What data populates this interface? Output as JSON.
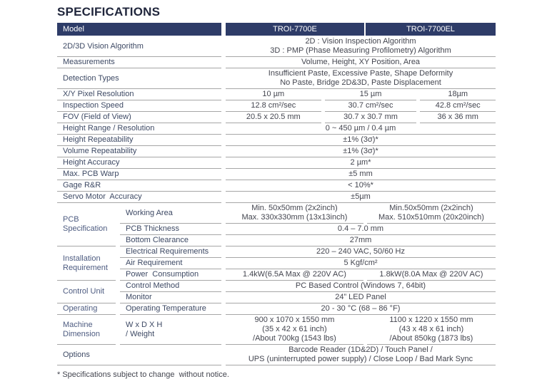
{
  "page": {
    "title": "SPECIFICATIONS",
    "footnote": "* Specifications subject to change  without notice."
  },
  "colors": {
    "header_bg": "#2e3c68",
    "header_text": "#ffffff",
    "row_line": "#a6a6a6",
    "label_text": "#3d4964",
    "group_text": "#4d5b80",
    "value_text": "#43454f",
    "title_text": "#20263c"
  },
  "header": {
    "model_label": "Model",
    "columns": [
      "TROI-7700E",
      "TROI-7700EL"
    ]
  },
  "sections": [
    {
      "type": "row",
      "label": "2D/3D Vision Algorithm",
      "cells": [
        {
          "lines": [
            "2D : Vision Inspection Algorithm",
            "3D : PMP (Phase Measuring Profilometry) Algorithm"
          ]
        }
      ]
    },
    {
      "type": "row",
      "label": "Measurements",
      "cells": [
        {
          "lines": [
            "Volume, Height, XY Position, Area"
          ]
        }
      ]
    },
    {
      "type": "row",
      "label": "Detection Types",
      "cells": [
        {
          "lines": [
            "Insufficient Paste, Excessive Paste, Shape Deformity",
            "No Paste, Bridge 2D&3D, Paste Displacement"
          ]
        }
      ]
    },
    {
      "type": "row",
      "label": "X/Y Pixel Resolution",
      "cells": [
        {
          "lines": [
            "10 µm"
          ]
        },
        {
          "lines": [
            "15 µm"
          ]
        },
        {
          "lines": [
            "18µm"
          ]
        }
      ]
    },
    {
      "type": "row",
      "label": "Inspection Speed",
      "cells": [
        {
          "lines": [
            "12.8 cm²/sec"
          ]
        },
        {
          "lines": [
            "30.7 cm²/sec"
          ]
        },
        {
          "lines": [
            "42.8 cm²/sec"
          ]
        }
      ]
    },
    {
      "type": "row",
      "label": "FOV (Field of View)",
      "cells": [
        {
          "lines": [
            "20.5 x 20.5 mm"
          ]
        },
        {
          "lines": [
            "30.7 x 30.7 mm"
          ]
        },
        {
          "lines": [
            "36 x 36 mm"
          ]
        }
      ]
    },
    {
      "type": "row",
      "label": "Height Range / Resolution",
      "cells": [
        {
          "lines": [
            "0 ~ 450 µm / 0.4 µm"
          ]
        }
      ]
    },
    {
      "type": "row",
      "label": "Height Repeatability",
      "cells": [
        {
          "lines": [
            "±1% (3σ)*"
          ]
        }
      ]
    },
    {
      "type": "row",
      "label": "Volume Repeatability",
      "cells": [
        {
          "lines": [
            "±1% (3σ)*"
          ]
        }
      ]
    },
    {
      "type": "row",
      "label": "Height Accuracy",
      "cells": [
        {
          "lines": [
            "2 µm*"
          ]
        }
      ]
    },
    {
      "type": "row",
      "label": "Max. PCB Warp",
      "cells": [
        {
          "lines": [
            "±5 mm"
          ]
        }
      ]
    },
    {
      "type": "row",
      "label": "Gage R&R",
      "cells": [
        {
          "lines": [
            "< 10%*"
          ]
        }
      ]
    },
    {
      "type": "row",
      "label": "Servo Motor  Accuracy",
      "cells": [
        {
          "lines": [
            "±5µm"
          ]
        }
      ]
    },
    {
      "type": "group",
      "label": "PCB Specification",
      "rows": [
        {
          "label": "Working Area",
          "cells": [
            {
              "lines": [
                "Min. 50x50mm (2x2inch)",
                "Max. 330x330mm (13x13inch)"
              ]
            },
            {
              "lines": [
                "Min.50x50mm (2x2inch)",
                "Max. 510x510mm (20x20inch)"
              ]
            }
          ]
        },
        {
          "label": "PCB Thickness",
          "cells": [
            {
              "lines": [
                "0.4 – 7.0 mm"
              ]
            }
          ]
        },
        {
          "label": "Bottom Clearance",
          "cells": [
            {
              "lines": [
                "27mm"
              ]
            }
          ]
        }
      ]
    },
    {
      "type": "group",
      "label": "Installation Requirement",
      "rows": [
        {
          "label": "Electrical Requirements",
          "cells": [
            {
              "lines": [
                "220 – 240 VAC, 50/60 Hz"
              ]
            }
          ]
        },
        {
          "label": "Air Requirement",
          "cells": [
            {
              "lines": [
                "5 Kgf/cm²"
              ]
            }
          ]
        },
        {
          "label": "Power  Consumption",
          "cells": [
            {
              "lines": [
                "1.4kW(6.5A Max @ 220V AC)"
              ]
            },
            {
              "lines": [
                "1.8kW(8.0A Max @ 220V AC)"
              ]
            }
          ]
        }
      ]
    },
    {
      "type": "group",
      "label": "Control Unit",
      "rows": [
        {
          "label": "Control Method",
          "cells": [
            {
              "lines": [
                "PC Based Control (Windows 7, 64bit)"
              ]
            }
          ]
        },
        {
          "label": "Monitor",
          "cells": [
            {
              "lines": [
                "24” LED Panel"
              ]
            }
          ]
        }
      ]
    },
    {
      "type": "group",
      "label": "Operating",
      "rows": [
        {
          "label": "Operating Temperature",
          "cells": [
            {
              "lines": [
                "20 - 30 °C (68 – 86 °F)"
              ]
            }
          ]
        }
      ]
    },
    {
      "type": "group",
      "label": "Machine Dimension",
      "rows": [
        {
          "label_lines": [
            "W x D X H",
            "/ Weight"
          ],
          "cells": [
            {
              "lines": [
                "900 x 1070 x 1550 mm",
                "(35 x 42 x 61 inch)",
                "/About 700kg (1543 lbs)"
              ]
            },
            {
              "lines": [
                "1100 x 1220 x 1550 mm",
                "(43 x 48 x 61 inch)",
                "/About 850kg (1873 lbs)"
              ]
            }
          ]
        }
      ]
    },
    {
      "type": "row",
      "label": "Options",
      "cells": [
        {
          "lines": [
            "Barcode Reader (1D&2D) / Touch Panel /",
            "UPS (uninterrupted power supply) / Close Loop / Bad Mark Sync"
          ]
        }
      ]
    }
  ]
}
